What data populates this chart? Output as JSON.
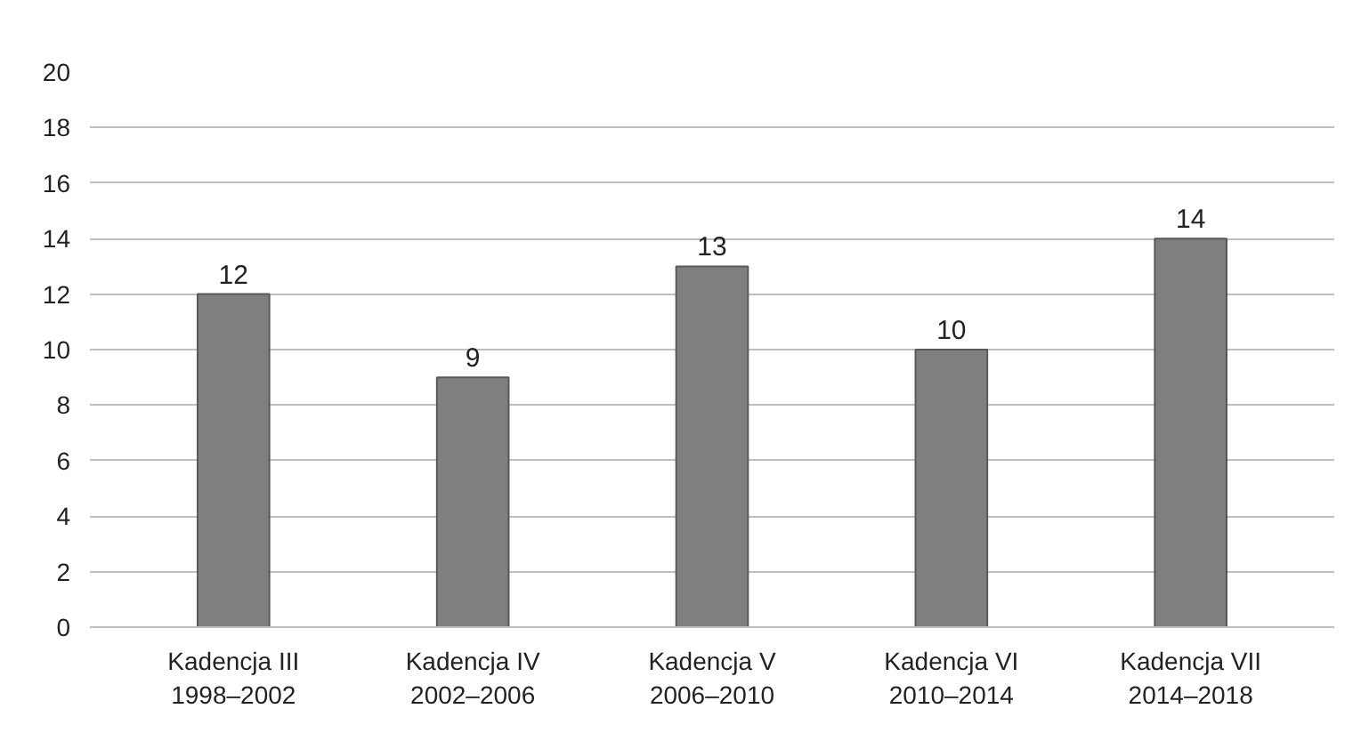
{
  "chart_data": {
    "type": "bar",
    "categories": [
      "Kadencja III\n1998–2002",
      "Kadencja IV\n2002–2006",
      "Kadencja V\n2006–2010",
      "Kadencja VI\n2010–2014",
      "Kadencja VII\n2014–2018"
    ],
    "values": [
      12,
      9,
      13,
      10,
      14
    ],
    "color": "#7f7f7f",
    "ylim": [
      0,
      20
    ],
    "yticks": [
      0,
      2,
      4,
      6,
      8,
      10,
      12,
      14,
      16,
      18,
      20
    ],
    "grid": "y",
    "data_labels": true
  }
}
